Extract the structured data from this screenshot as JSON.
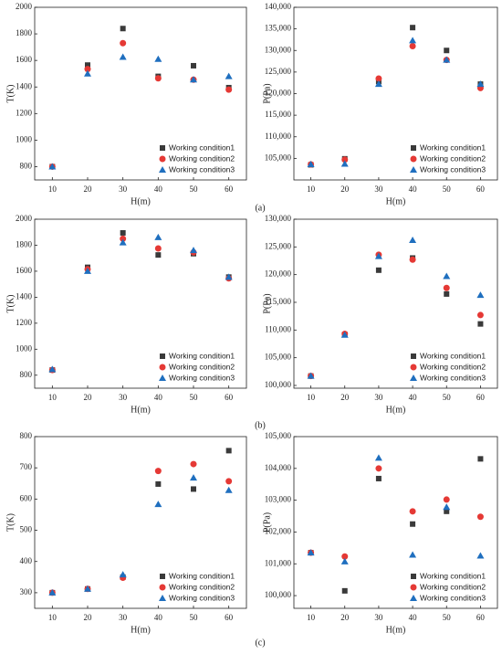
{
  "captions": [
    "(a)",
    "(b)",
    "(c)"
  ],
  "chart_data": [
    {
      "type": "scatter",
      "xlabel": "H(m)",
      "ylabel": "T(K)",
      "x": [
        10,
        20,
        30,
        40,
        50,
        60
      ],
      "xlim": [
        5,
        65
      ],
      "xticks": [
        10,
        20,
        30,
        40,
        50,
        60
      ],
      "ylim": [
        700,
        2000
      ],
      "yticks": [
        800,
        1000,
        1200,
        1400,
        1600,
        1800,
        2000
      ],
      "legend": "lower right",
      "series": [
        {
          "name": "Working condition1",
          "color": "#3a3a3a",
          "marker": "square",
          "values": [
            800,
            1565,
            1840,
            1480,
            1560,
            1395
          ]
        },
        {
          "name": "Working condition2",
          "color": "#e53935",
          "marker": "circle",
          "values": [
            800,
            1535,
            1730,
            1465,
            1455,
            1380
          ]
        },
        {
          "name": "Working condition3",
          "color": "#1f6fbf",
          "marker": "triangle",
          "values": [
            800,
            1500,
            1625,
            1610,
            1455,
            1480
          ]
        }
      ]
    },
    {
      "type": "scatter",
      "xlabel": "H(m)",
      "ylabel": "P(Pa)",
      "x": [
        10,
        20,
        30,
        40,
        50,
        60
      ],
      "xlim": [
        5,
        65
      ],
      "xticks": [
        10,
        20,
        30,
        40,
        50,
        60
      ],
      "ylim": [
        100000,
        140000
      ],
      "yticks": [
        {
          "value": 105000,
          "label": "105,000"
        },
        {
          "value": 110000,
          "label": "110,000"
        },
        {
          "value": 115000,
          "label": "115,000"
        },
        {
          "value": 120000,
          "label": "120,000"
        },
        {
          "value": 125000,
          "label": "125,000"
        },
        {
          "value": 130000,
          "label": "130,000"
        },
        {
          "value": 135000,
          "label": "135,000"
        },
        {
          "value": 140000,
          "label": "140,000"
        }
      ],
      "legend": "lower right",
      "series": [
        {
          "name": "Working condition1",
          "color": "#3a3a3a",
          "marker": "square",
          "values": [
            103500,
            104900,
            122800,
            135300,
            130000,
            122200
          ]
        },
        {
          "name": "Working condition2",
          "color": "#e53935",
          "marker": "circle",
          "values": [
            103600,
            104700,
            123500,
            131000,
            127800,
            121300
          ]
        },
        {
          "name": "Working condition3",
          "color": "#1f6fbf",
          "marker": "triangle",
          "values": [
            103600,
            103700,
            122200,
            132300,
            127800,
            122200
          ]
        }
      ]
    },
    {
      "type": "scatter",
      "xlabel": "H(m)",
      "ylabel": "T(K)",
      "x": [
        10,
        20,
        30,
        40,
        50,
        60
      ],
      "xlim": [
        5,
        65
      ],
      "xticks": [
        10,
        20,
        30,
        40,
        50,
        60
      ],
      "ylim": [
        700,
        2000
      ],
      "yticks": [
        800,
        1000,
        1200,
        1400,
        1600,
        1800,
        2000
      ],
      "legend": "lower right",
      "series": [
        {
          "name": "Working condition1",
          "color": "#3a3a3a",
          "marker": "square",
          "values": [
            840,
            1630,
            1895,
            1725,
            1735,
            1555
          ]
        },
        {
          "name": "Working condition2",
          "color": "#e53935",
          "marker": "circle",
          "values": [
            840,
            1615,
            1850,
            1775,
            1745,
            1545
          ]
        },
        {
          "name": "Working condition3",
          "color": "#1f6fbf",
          "marker": "triangle",
          "values": [
            845,
            1600,
            1820,
            1860,
            1760,
            1555
          ]
        }
      ]
    },
    {
      "type": "scatter",
      "xlabel": "H(m)",
      "ylabel": "P(Pa)",
      "x": [
        10,
        20,
        30,
        40,
        50,
        60
      ],
      "xlim": [
        5,
        65
      ],
      "xticks": [
        10,
        20,
        30,
        40,
        50,
        60
      ],
      "ylim": [
        99500,
        130000
      ],
      "yticks": [
        {
          "value": 100000,
          "label": "100,000"
        },
        {
          "value": 105000,
          "label": "105,000"
        },
        {
          "value": 110000,
          "label": "110,000"
        },
        {
          "value": 115000,
          "label": "115,000"
        },
        {
          "value": 120000,
          "label": "120,000"
        },
        {
          "value": 125000,
          "label": "125,000"
        },
        {
          "value": 130000,
          "label": "130,000"
        }
      ],
      "legend": "lower right",
      "series": [
        {
          "name": "Working condition1",
          "color": "#3a3a3a",
          "marker": "square",
          "values": [
            101700,
            109200,
            120800,
            123000,
            116500,
            111100
          ]
        },
        {
          "name": "Working condition2",
          "color": "#e53935",
          "marker": "circle",
          "values": [
            101700,
            109300,
            123600,
            122700,
            117600,
            112700
          ]
        },
        {
          "name": "Working condition3",
          "color": "#1f6fbf",
          "marker": "triangle",
          "values": [
            101700,
            109100,
            123300,
            126200,
            119700,
            116300
          ]
        }
      ]
    },
    {
      "type": "scatter",
      "xlabel": "H(m)",
      "ylabel": "T(K)",
      "x": [
        10,
        20,
        30,
        40,
        50,
        60
      ],
      "xlim": [
        5,
        65
      ],
      "xticks": [
        10,
        20,
        30,
        40,
        50,
        60
      ],
      "ylim": [
        250,
        800
      ],
      "yticks": [
        300,
        400,
        500,
        600,
        700,
        800
      ],
      "legend": "lower right",
      "series": [
        {
          "name": "Working condition1",
          "color": "#3a3a3a",
          "marker": "square",
          "values": [
            300,
            312,
            350,
            648,
            632,
            755
          ]
        },
        {
          "name": "Working condition2",
          "color": "#e53935",
          "marker": "circle",
          "values": [
            300,
            312,
            348,
            690,
            712,
            657
          ]
        },
        {
          "name": "Working condition3",
          "color": "#1f6fbf",
          "marker": "triangle",
          "values": [
            300,
            312,
            358,
            583,
            668,
            628
          ]
        }
      ]
    },
    {
      "type": "scatter",
      "xlabel": "H(m)",
      "ylabel": "P(Pa)",
      "x": [
        10,
        20,
        30,
        40,
        50,
        60
      ],
      "xlim": [
        5,
        65
      ],
      "xticks": [
        10,
        20,
        30,
        40,
        50,
        60
      ],
      "ylim": [
        99600,
        105000
      ],
      "yticks": [
        {
          "value": 100000,
          "label": "100,000"
        },
        {
          "value": 101000,
          "label": "101,000"
        },
        {
          "value": 102000,
          "label": "102,000"
        },
        {
          "value": 103000,
          "label": "103,000"
        },
        {
          "value": 104000,
          "label": "104,000"
        },
        {
          "value": 105000,
          "label": "105,000"
        }
      ],
      "legend": "lower right",
      "series": [
        {
          "name": "Working condition1",
          "color": "#3a3a3a",
          "marker": "square",
          "values": [
            101350,
            100150,
            103680,
            102250,
            102650,
            104300
          ]
        },
        {
          "name": "Working condition2",
          "color": "#e53935",
          "marker": "circle",
          "values": [
            101350,
            101230,
            104000,
            102650,
            103020,
            102480
          ]
        },
        {
          "name": "Working condition3",
          "color": "#1f6fbf",
          "marker": "triangle",
          "values": [
            101350,
            101070,
            104330,
            101280,
            102780,
            101250
          ]
        }
      ]
    }
  ]
}
